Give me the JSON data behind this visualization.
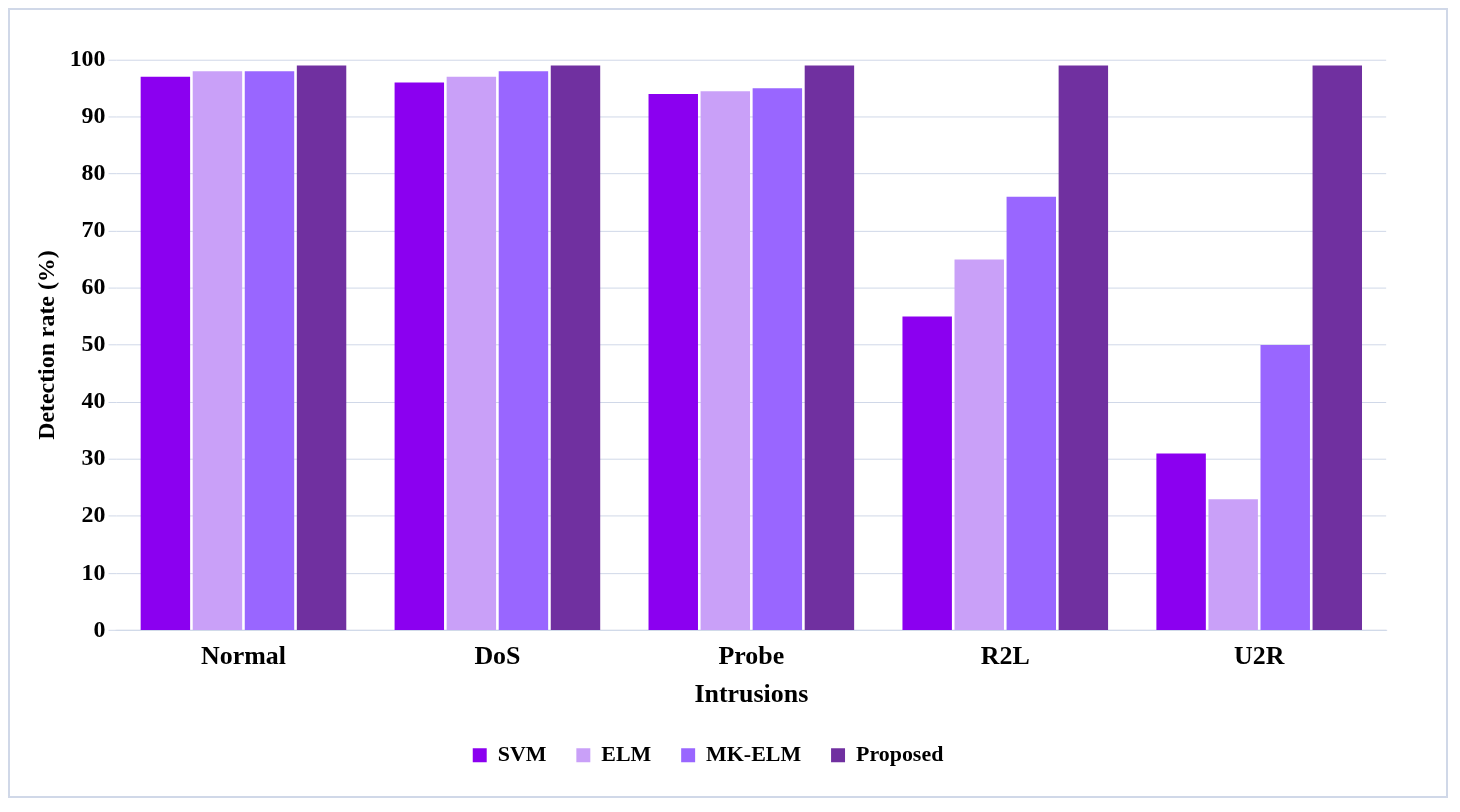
{
  "chart_data": {
    "type": "bar",
    "xlabel": "Intrusions",
    "ylabel": "Detection rate (%)",
    "categories": [
      "Normal",
      "DoS",
      "Probe",
      "R2L",
      "U2R"
    ],
    "series": [
      {
        "name": "SVM",
        "color": "#8b00f0",
        "values": [
          97,
          96,
          94,
          55,
          31
        ]
      },
      {
        "name": "ELM",
        "color": "#c9a0f8",
        "values": [
          98,
          97,
          94.5,
          65,
          23
        ]
      },
      {
        "name": "MK-ELM",
        "color": "#9966ff",
        "values": [
          98,
          98,
          95,
          76,
          50
        ]
      },
      {
        "name": "Proposed",
        "color": "#7030a0",
        "values": [
          99,
          99,
          99,
          99,
          99
        ]
      }
    ],
    "ylim": [
      0,
      100
    ],
    "yticks": [
      0,
      10,
      20,
      30,
      40,
      50,
      60,
      70,
      80,
      90,
      100
    ],
    "grid": "y",
    "legend": "bottom"
  }
}
